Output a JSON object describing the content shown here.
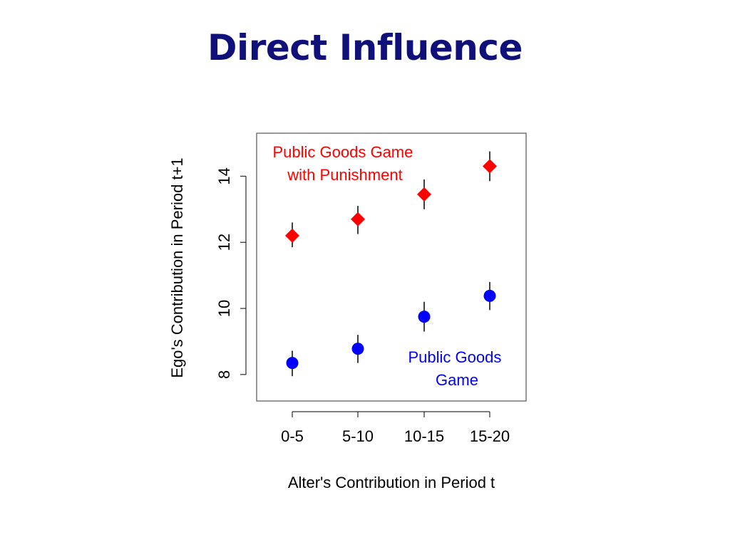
{
  "slide": {
    "title": "Direct Influence"
  },
  "chart_data": {
    "type": "scatter",
    "categories": [
      "0-5",
      "5-10",
      "10-15",
      "15-20"
    ],
    "xlabel": "Alter's Contribution in Period t",
    "ylabel": "Ego's Contribution in Period t+1",
    "ylim": [
      7.2,
      15.3
    ],
    "yticks": [
      8,
      10,
      12,
      14
    ],
    "grid": false,
    "series": [
      {
        "name": "Public Goods Game with Punishment",
        "label_lines": [
          "Public Goods Game",
          "with Punishment"
        ],
        "marker": "diamond",
        "color": "#ff0000",
        "values": [
          12.2,
          12.7,
          13.45,
          14.3
        ],
        "err_low": [
          11.85,
          12.25,
          13.0,
          13.85
        ],
        "err_high": [
          12.6,
          13.1,
          13.9,
          14.75
        ]
      },
      {
        "name": "Public Goods Game",
        "label_lines": [
          "Public Goods",
          "Game"
        ],
        "marker": "circle",
        "color": "#0000ff",
        "values": [
          8.35,
          8.78,
          9.75,
          10.38
        ],
        "err_low": [
          7.95,
          8.35,
          9.3,
          9.95
        ],
        "err_high": [
          8.72,
          9.2,
          10.2,
          10.8
        ]
      }
    ]
  }
}
